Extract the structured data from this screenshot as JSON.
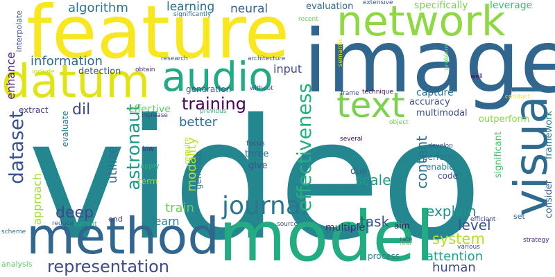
{
  "cloud": {
    "background": "#ffffff",
    "words": [
      {
        "text": "video",
        "color": "#24868e"
      },
      {
        "text": "image",
        "color": "#31678e"
      },
      {
        "text": "feature",
        "color": "#f8e621"
      },
      {
        "text": "model",
        "color": "#25ab81"
      },
      {
        "text": "method",
        "color": "#31668e"
      },
      {
        "text": "network",
        "color": "#8fd744"
      },
      {
        "text": "datum",
        "color": "#dfe318"
      },
      {
        "text": "visual",
        "color": "#2f6b8e"
      },
      {
        "text": "audio",
        "color": "#23a983"
      },
      {
        "text": "text",
        "color": "#7cd250"
      },
      {
        "text": "journal",
        "color": "#2b758e"
      },
      {
        "text": "dataset",
        "color": "#3b518b"
      },
      {
        "text": "representation",
        "color": "#3e4a89"
      },
      {
        "text": "effectiveness",
        "color": "#26ad81"
      },
      {
        "text": "astronaut",
        "color": "#1f9e89"
      },
      {
        "text": "training",
        "color": "#440154"
      },
      {
        "text": "information",
        "color": "#31678e"
      },
      {
        "text": "learning",
        "color": "#2c728e"
      },
      {
        "text": "neural",
        "color": "#355f8d"
      },
      {
        "text": "explain",
        "color": "#21918c"
      },
      {
        "text": "system",
        "color": "#b5de2b"
      },
      {
        "text": "attention",
        "color": "#1fa188"
      },
      {
        "text": "deep",
        "color": "#3e4a89"
      },
      {
        "text": "task",
        "color": "#3b528b"
      },
      {
        "text": "scale",
        "color": "#1f9a8a"
      },
      {
        "text": "content",
        "color": "#2d718e"
      },
      {
        "text": "level",
        "color": "#3a548c"
      },
      {
        "text": "human",
        "color": "#3f4788"
      },
      {
        "text": "train",
        "color": "#6ccd5a"
      },
      {
        "text": "learn",
        "color": "#27808e"
      },
      {
        "text": "dil",
        "color": "#404588"
      },
      {
        "text": "better",
        "color": "#2e6e8e"
      },
      {
        "text": "modality",
        "color": "#b8de29"
      },
      {
        "text": "utilize",
        "color": "#2d718e"
      },
      {
        "text": "approach",
        "color": "#a0da39"
      },
      {
        "text": "input",
        "color": "#3e4989"
      },
      {
        "text": "algorithm",
        "color": "#2c728e"
      },
      {
        "text": "enhance",
        "color": "#482475"
      },
      {
        "text": "specifically",
        "color": "#7ad151"
      },
      {
        "text": "leverage",
        "color": "#3dbc74"
      },
      {
        "text": "evaluation",
        "color": "#31688e"
      },
      {
        "text": "capture",
        "color": "#2d708e"
      },
      {
        "text": "accuracy",
        "color": "#3d4e8a"
      },
      {
        "text": "multimodal",
        "color": "#3a538b"
      },
      {
        "text": "outperform",
        "color": "#8bd646"
      },
      {
        "text": "framework",
        "color": "#2a788e"
      },
      {
        "text": "consider",
        "color": "#355f8d"
      },
      {
        "text": "significant",
        "color": "#4ac16d"
      },
      {
        "text": "generation",
        "color": "#38588c"
      },
      {
        "text": "detection",
        "color": "#3a548c"
      },
      {
        "text": "effective",
        "color": "#5ec962"
      },
      {
        "text": "extract",
        "color": "#424086"
      },
      {
        "text": "evaluate",
        "color": "#2b748e"
      },
      {
        "text": "interpolate",
        "color": "#3b528b"
      },
      {
        "text": "perform",
        "color": "#2a778e"
      },
      {
        "text": "enable",
        "color": "#26828e"
      },
      {
        "text": "code",
        "color": "#3f4889"
      },
      {
        "text": "multiple",
        "color": "#482878"
      },
      {
        "text": "aim",
        "color": "#471164"
      },
      {
        "text": "process",
        "color": "#277f8e"
      },
      {
        "text": "due",
        "color": "#31688e"
      },
      {
        "text": "give",
        "color": "#3b528b"
      },
      {
        "text": "three",
        "color": "#31688e"
      },
      {
        "text": "focus",
        "color": "#3e4c8a"
      },
      {
        "text": "generate",
        "color": "#2c728e"
      },
      {
        "text": "require",
        "color": "#b5de2b"
      },
      {
        "text": "term",
        "color": "#95d840"
      },
      {
        "text": "apply",
        "color": "#2db27d"
      },
      {
        "text": "low",
        "color": "#46307e"
      },
      {
        "text": "increase",
        "color": "#46337f"
      },
      {
        "text": "previous",
        "color": "#34b679"
      },
      {
        "text": "end",
        "color": "#453781"
      },
      {
        "text": "set",
        "color": "#32658e"
      },
      {
        "text": "analysis",
        "color": "#5ec962"
      },
      {
        "text": "scheme",
        "color": "#2c728e"
      },
      {
        "text": "reduce",
        "color": "#3b528b"
      },
      {
        "text": "current",
        "color": "#2eb37c"
      },
      {
        "text": "source",
        "color": "#3a548c"
      },
      {
        "text": "rate",
        "color": "#3e4c8a"
      },
      {
        "text": "real",
        "color": "#5ec962"
      },
      {
        "text": "various",
        "color": "#3f4889"
      },
      {
        "text": "strategy",
        "color": "#482677"
      },
      {
        "text": "efficient",
        "color": "#433e85"
      },
      {
        "text": "develop",
        "color": "#3b528b"
      },
      {
        "text": "several",
        "color": "#440154"
      },
      {
        "text": "object",
        "color": "#6ccd5a"
      },
      {
        "text": "conduct",
        "color": "#fde725"
      },
      {
        "text": "well",
        "color": "#440154"
      },
      {
        "text": "problem",
        "color": "#5ec962"
      },
      {
        "text": "semantic",
        "color": "#d8e219"
      },
      {
        "text": "technique",
        "color": "#440154"
      },
      {
        "text": "frame",
        "color": "#3f4889"
      },
      {
        "text": "architecture",
        "color": "#3b528b"
      },
      {
        "text": "research",
        "color": "#39558c"
      },
      {
        "text": "without",
        "color": "#3b528b"
      },
      {
        "text": "obtain",
        "color": "#482173"
      },
      {
        "text": "include",
        "color": "#b5de2b"
      },
      {
        "text": "recent",
        "color": "#6ccd5a"
      },
      {
        "text": "extensive",
        "color": "#3b528b"
      },
      {
        "text": "significantly",
        "color": "#2c728e"
      }
    ]
  }
}
